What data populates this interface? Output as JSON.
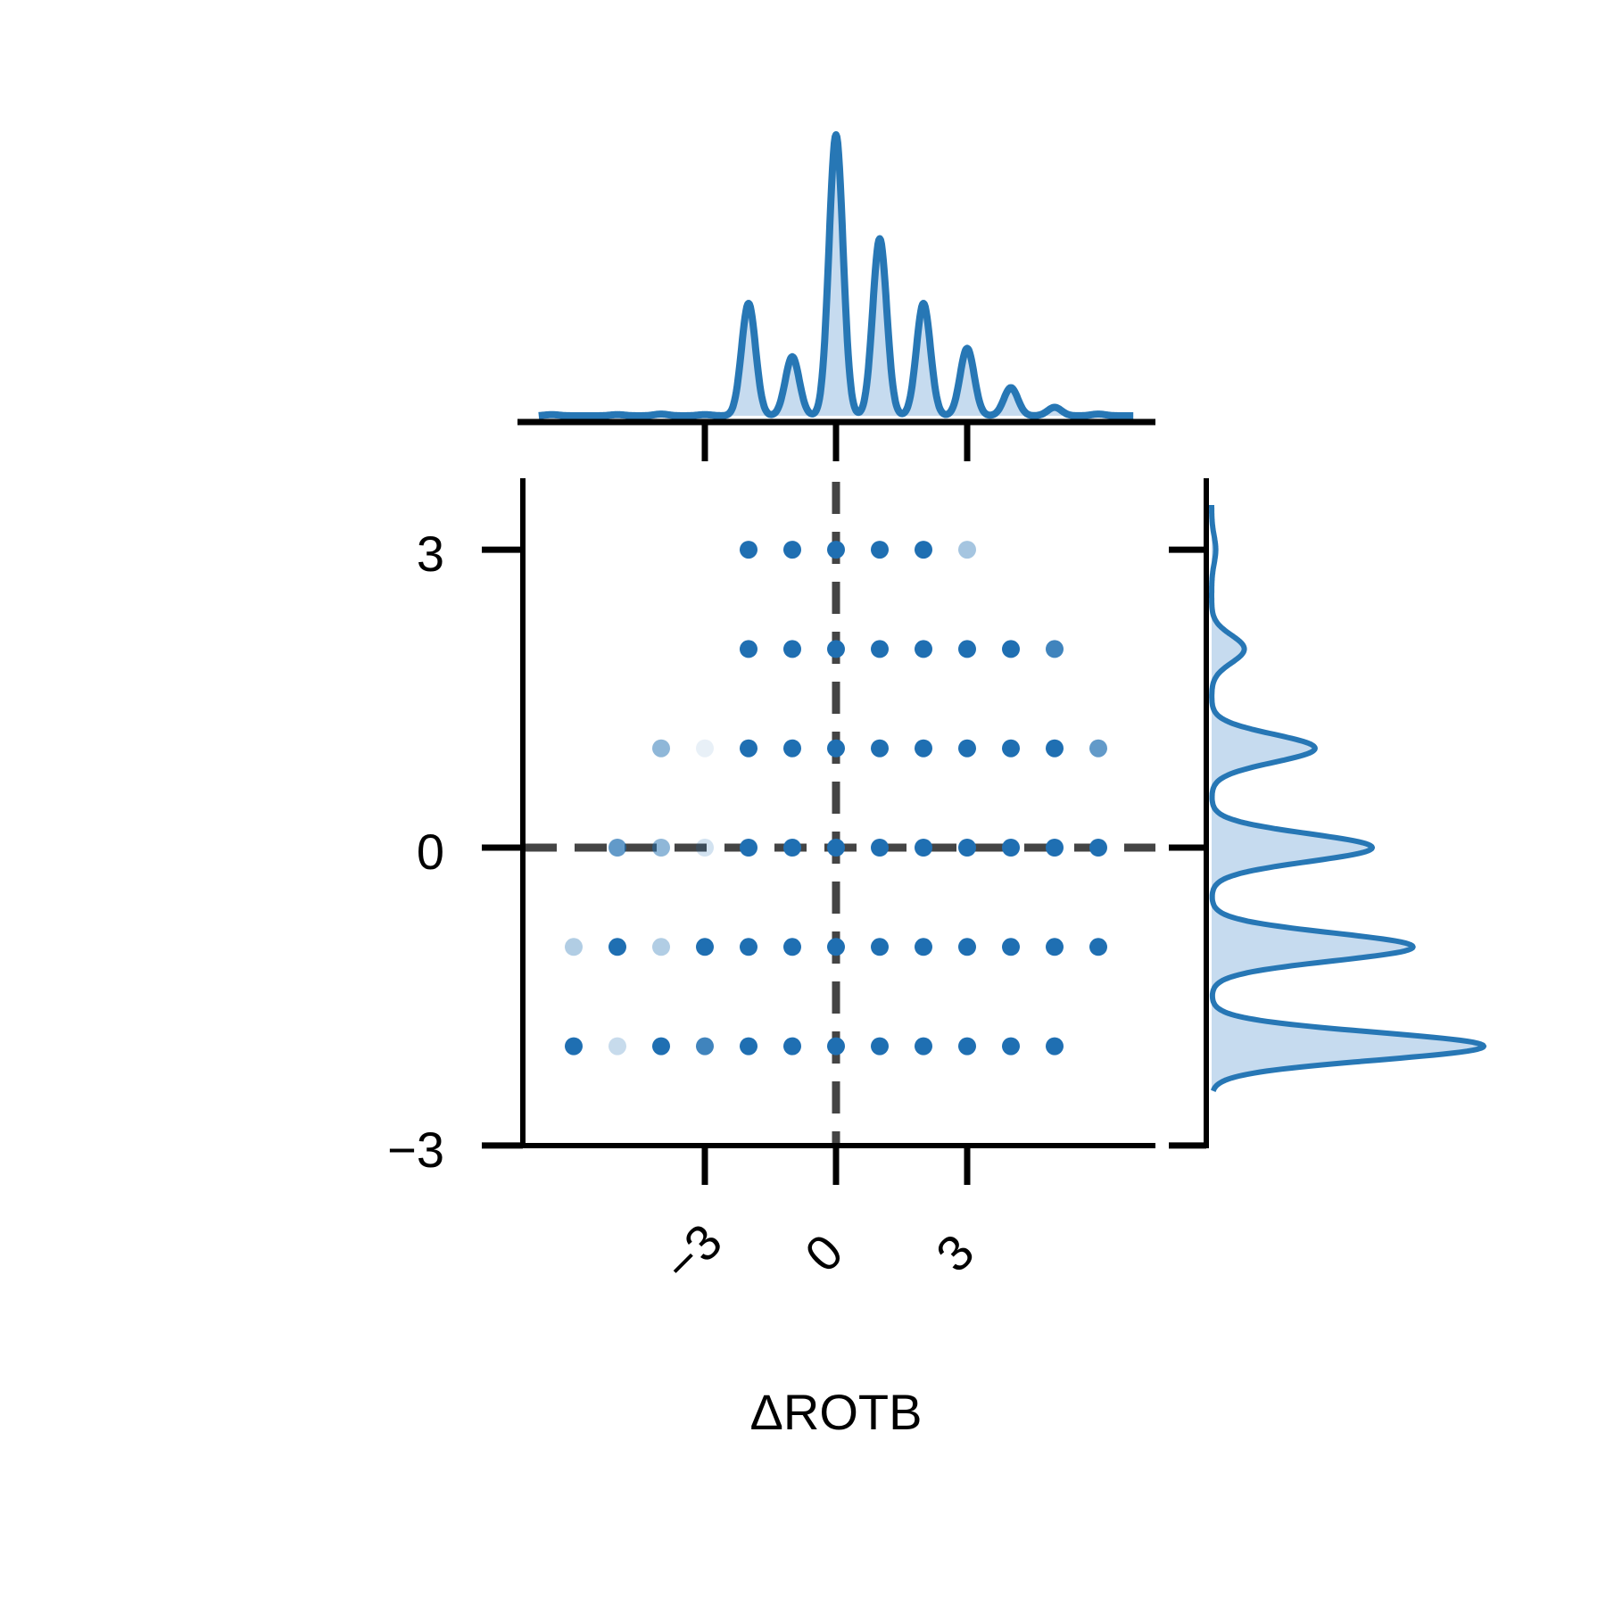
{
  "chart_data": {
    "type": "scatter",
    "xlabel": "ΔROTB",
    "ylabel": "",
    "x_ticks": [
      "−3",
      "0",
      "3"
    ],
    "x_tick_values": [
      -3,
      0,
      3
    ],
    "y_ticks": [
      "−3",
      "0",
      "3"
    ],
    "y_tick_values": [
      -3,
      0,
      3
    ],
    "xlim": [
      -7.2,
      7.2
    ],
    "ylim": [
      -3,
      3.7
    ],
    "grid": false,
    "reference_lines": {
      "x": 0,
      "y": 0,
      "style": "dashed"
    },
    "marginal_top": "kde",
    "marginal_right": "kde",
    "colors": {
      "point": "#1f6fb2",
      "kde": "#2777b5",
      "kde_fill": "#c6dbef",
      "refline": "#444444",
      "axis": "#000000"
    },
    "points": [
      {
        "x": 2,
        "y": 3,
        "a": 1
      },
      {
        "x": 1,
        "y": 3,
        "a": 1
      },
      {
        "x": 0,
        "y": 3,
        "a": 1
      },
      {
        "x": -1,
        "y": 3,
        "a": 1
      },
      {
        "x": -2,
        "y": 3,
        "a": 1
      },
      {
        "x": 3,
        "y": 3,
        "a": 0.4
      },
      {
        "x": -2,
        "y": 2,
        "a": 1
      },
      {
        "x": -1,
        "y": 2,
        "a": 1
      },
      {
        "x": 0,
        "y": 2,
        "a": 1
      },
      {
        "x": 1,
        "y": 2,
        "a": 1
      },
      {
        "x": 2,
        "y": 2,
        "a": 1
      },
      {
        "x": 3,
        "y": 2,
        "a": 1
      },
      {
        "x": 4,
        "y": 2,
        "a": 1
      },
      {
        "x": 5,
        "y": 2,
        "a": 0.85
      },
      {
        "x": -4,
        "y": 1,
        "a": 0.5
      },
      {
        "x": -3,
        "y": 1,
        "a": 0.1
      },
      {
        "x": -2,
        "y": 1,
        "a": 1
      },
      {
        "x": -1,
        "y": 1,
        "a": 1
      },
      {
        "x": 0,
        "y": 1,
        "a": 1
      },
      {
        "x": 1,
        "y": 1,
        "a": 1
      },
      {
        "x": 2,
        "y": 1,
        "a": 1
      },
      {
        "x": 3,
        "y": 1,
        "a": 1
      },
      {
        "x": 4,
        "y": 1,
        "a": 1
      },
      {
        "x": 5,
        "y": 1,
        "a": 1
      },
      {
        "x": 6,
        "y": 1,
        "a": 0.7
      },
      {
        "x": -5,
        "y": 0,
        "a": 0.7
      },
      {
        "x": -4,
        "y": 0,
        "a": 0.5
      },
      {
        "x": -3,
        "y": 0,
        "a": 0.2
      },
      {
        "x": -2,
        "y": 0,
        "a": 1
      },
      {
        "x": -1,
        "y": 0,
        "a": 1
      },
      {
        "x": 0,
        "y": 0,
        "a": 1
      },
      {
        "x": 1,
        "y": 0,
        "a": 1
      },
      {
        "x": 2,
        "y": 0,
        "a": 1
      },
      {
        "x": 3,
        "y": 0,
        "a": 1
      },
      {
        "x": 4,
        "y": 0,
        "a": 1
      },
      {
        "x": 5,
        "y": 0,
        "a": 1
      },
      {
        "x": 6,
        "y": 0,
        "a": 1
      },
      {
        "x": -6,
        "y": -1,
        "a": 0.35
      },
      {
        "x": -5,
        "y": -1,
        "a": 1
      },
      {
        "x": -4,
        "y": -1,
        "a": 0.35
      },
      {
        "x": -3,
        "y": -1,
        "a": 1
      },
      {
        "x": -2,
        "y": -1,
        "a": 1
      },
      {
        "x": -1,
        "y": -1,
        "a": 1
      },
      {
        "x": 0,
        "y": -1,
        "a": 1
      },
      {
        "x": 1,
        "y": -1,
        "a": 1
      },
      {
        "x": 2,
        "y": -1,
        "a": 1
      },
      {
        "x": 3,
        "y": -1,
        "a": 1
      },
      {
        "x": 4,
        "y": -1,
        "a": 1
      },
      {
        "x": 5,
        "y": -1,
        "a": 1
      },
      {
        "x": 6,
        "y": -1,
        "a": 1
      },
      {
        "x": -6,
        "y": -2,
        "a": 1
      },
      {
        "x": -5,
        "y": -2,
        "a": 0.25
      },
      {
        "x": -4,
        "y": -2,
        "a": 1
      },
      {
        "x": -3,
        "y": -2,
        "a": 0.85
      },
      {
        "x": -2,
        "y": -2,
        "a": 1
      },
      {
        "x": -1,
        "y": -2,
        "a": 1
      },
      {
        "x": 0,
        "y": -2,
        "a": 1
      },
      {
        "x": 1,
        "y": -2,
        "a": 1
      },
      {
        "x": 2,
        "y": -2,
        "a": 1
      },
      {
        "x": 3,
        "y": -2,
        "a": 1
      },
      {
        "x": 4,
        "y": -2,
        "a": 1
      },
      {
        "x": 5,
        "y": -2,
        "a": 1
      }
    ],
    "kde_x": [
      {
        "x": -6.5,
        "h": 0.004
      },
      {
        "x": -5.0,
        "h": 0.004
      },
      {
        "x": -4.0,
        "h": 0.006
      },
      {
        "x": -3.0,
        "h": 0.004
      },
      {
        "x": -2.0,
        "h": 0.4
      },
      {
        "x": -1.0,
        "h": 0.21
      },
      {
        "x": 0.0,
        "h": 1.0
      },
      {
        "x": 1.0,
        "h": 0.63
      },
      {
        "x": 2.0,
        "h": 0.4
      },
      {
        "x": 3.0,
        "h": 0.24
      },
      {
        "x": 4.0,
        "h": 0.1
      },
      {
        "x": 5.0,
        "h": 0.03
      },
      {
        "x": 6.0,
        "h": 0.006
      }
    ],
    "kde_y": [
      {
        "y": 3,
        "h": 0.015
      },
      {
        "y": 2,
        "h": 0.12
      },
      {
        "y": 1,
        "h": 0.38
      },
      {
        "y": 0,
        "h": 0.59
      },
      {
        "y": -1,
        "h": 0.74
      },
      {
        "y": -2,
        "h": 1.0
      }
    ]
  }
}
